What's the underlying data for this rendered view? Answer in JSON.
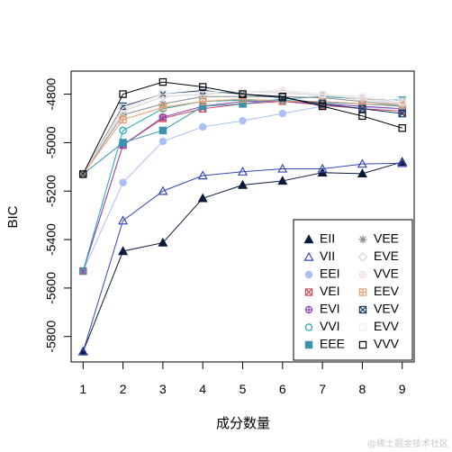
{
  "chart_data": {
    "type": "line",
    "xlabel": "成分数量",
    "ylabel": "BIC",
    "x": [
      1,
      2,
      3,
      4,
      5,
      6,
      7,
      8,
      9
    ],
    "xlim": [
      0.7,
      9.3
    ],
    "ylim": [
      -5905,
      -4705
    ],
    "xticks": [
      "1",
      "2",
      "3",
      "4",
      "5",
      "6",
      "7",
      "8",
      "9"
    ],
    "yticks": [
      -5800,
      -5600,
      -5400,
      -5200,
      -5000,
      -4800
    ],
    "yticklabels": [
      "-5800",
      "-5600",
      "-5400",
      "-5200",
      "-5000",
      "-4800"
    ],
    "grid": false,
    "legend_position": "bottom-right",
    "series": [
      {
        "name": "EII",
        "color": "#0b1b3a",
        "marker": "filled-triangle",
        "values": [
          -5862,
          -5448,
          -5413,
          -5230,
          -5175,
          -5158,
          -5124,
          -5128,
          -5080
        ]
      },
      {
        "name": "VII",
        "color": "#3547b8",
        "marker": "open-triangle",
        "values": [
          -5862,
          -5322,
          -5200,
          -5136,
          -5120,
          -5108,
          -5108,
          -5088,
          -5085
        ]
      },
      {
        "name": "EEI",
        "color": "#a9bff5",
        "marker": "filled-circle",
        "values": [
          -5530,
          -5165,
          -4995,
          -4935,
          -4910,
          -4880,
          -4850,
          -4855,
          -4860
        ]
      },
      {
        "name": "VEI",
        "color": "#cf4a5c",
        "marker": "boxed-x",
        "values": [
          -5530,
          -5010,
          -4900,
          -4860,
          -4840,
          -4830,
          -4845,
          -4860,
          -4870
        ]
      },
      {
        "name": "EVI",
        "color": "#8b45b5",
        "marker": "circled-plus",
        "values": [
          -5530,
          -5010,
          -4895,
          -4850,
          -4830,
          -4830,
          -4840,
          -4850,
          -4860
        ]
      },
      {
        "name": "VVI",
        "color": "#1da8b3",
        "marker": "open-circle",
        "values": [
          -5530,
          -4950,
          -4860,
          -4830,
          -4825,
          -4825,
          -4835,
          -4840,
          -4850
        ]
      },
      {
        "name": "EEE",
        "color": "#3a92ad",
        "marker": "filled-square",
        "values": [
          -5130,
          -5000,
          -4950,
          -4850,
          -4840,
          -4820,
          -4810,
          -4820,
          -4825
        ]
      },
      {
        "name": "VEE",
        "color": "#8c8c8c",
        "marker": "asterisk",
        "values": [
          -5130,
          -4885,
          -4840,
          -4810,
          -4810,
          -4810,
          -4815,
          -4830,
          -4845
        ]
      },
      {
        "name": "EVE",
        "color": "#d2d2d2",
        "marker": "open-diamond",
        "values": [
          -5130,
          -4870,
          -4810,
          -4800,
          -4790,
          -4795,
          -4805,
          -4820,
          -4840
        ]
      },
      {
        "name": "VVE",
        "color": "#f2d8dc",
        "marker": "circled-plus",
        "values": [
          -5130,
          -4860,
          -4800,
          -4790,
          -4790,
          -4785,
          -4800,
          -4815,
          -4835
        ]
      },
      {
        "name": "EEV",
        "color": "#e89a6a",
        "marker": "boxed-plus",
        "values": [
          -5130,
          -4905,
          -4855,
          -4830,
          -4820,
          -4830,
          -4830,
          -4840,
          -4845
        ]
      },
      {
        "name": "VEV",
        "color": "#163b66",
        "marker": "boxed-x",
        "values": [
          -5130,
          -4850,
          -4800,
          -4785,
          -4800,
          -4815,
          -4840,
          -4860,
          -4880
        ]
      },
      {
        "name": "EVV",
        "color": "#efefef",
        "marker": "open-square",
        "values": [
          -5130,
          -4855,
          -4800,
          -4790,
          -4790,
          -4790,
          -4800,
          -4810,
          -4830
        ]
      },
      {
        "name": "VVV",
        "color": "#000000",
        "marker": "open-square",
        "values": [
          -5130,
          -4800,
          -4750,
          -4770,
          -4800,
          -4810,
          -4850,
          -4890,
          -4940
        ]
      }
    ]
  },
  "watermark": "@稀土掘金技术社区"
}
